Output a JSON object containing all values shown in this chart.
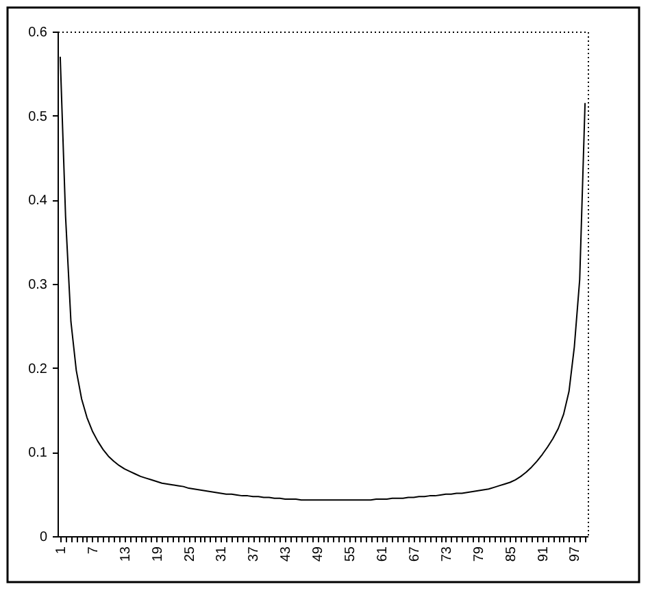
{
  "chart_data": {
    "type": "line",
    "categories": [
      "1",
      null,
      null,
      null,
      null,
      null,
      "7",
      null,
      null,
      null,
      null,
      null,
      "13",
      null,
      null,
      null,
      null,
      null,
      "19",
      null,
      null,
      null,
      null,
      null,
      "25",
      null,
      null,
      null,
      null,
      null,
      "31",
      null,
      null,
      null,
      null,
      null,
      "37",
      null,
      null,
      null,
      null,
      null,
      "43",
      null,
      null,
      null,
      null,
      null,
      "49",
      null,
      null,
      null,
      null,
      null,
      "55",
      null,
      null,
      null,
      null,
      null,
      "61",
      null,
      null,
      null,
      null,
      null,
      "67",
      null,
      null,
      null,
      null,
      null,
      "73",
      null,
      null,
      null,
      null,
      null,
      "79",
      null,
      null,
      null,
      null,
      null,
      "85",
      null,
      null,
      null,
      null,
      null,
      "91",
      null,
      null,
      null,
      null,
      null,
      "97",
      null,
      null
    ],
    "values": [
      0.57,
      0.38,
      0.255,
      0.197,
      0.163,
      0.141,
      0.125,
      0.113,
      0.103,
      0.095,
      0.089,
      0.084,
      0.08,
      0.077,
      0.074,
      0.071,
      0.069,
      0.067,
      0.065,
      0.063,
      0.062,
      0.061,
      0.06,
      0.059,
      0.057,
      0.056,
      0.055,
      0.054,
      0.053,
      0.052,
      0.051,
      0.05,
      0.05,
      0.049,
      0.048,
      0.048,
      0.047,
      0.047,
      0.046,
      0.046,
      0.045,
      0.045,
      0.044,
      0.044,
      0.044,
      0.043,
      0.043,
      0.043,
      0.043,
      0.043,
      0.043,
      0.043,
      0.043,
      0.043,
      0.043,
      0.043,
      0.043,
      0.043,
      0.043,
      0.044,
      0.044,
      0.044,
      0.045,
      0.045,
      0.045,
      0.046,
      0.046,
      0.047,
      0.047,
      0.048,
      0.048,
      0.049,
      0.05,
      0.05,
      0.051,
      0.051,
      0.052,
      0.053,
      0.054,
      0.055,
      0.056,
      0.058,
      0.06,
      0.062,
      0.064,
      0.067,
      0.071,
      0.076,
      0.082,
      0.089,
      0.097,
      0.106,
      0.116,
      0.128,
      0.145,
      0.172,
      0.225,
      0.305,
      0.515
    ],
    "color": "#000000",
    "ylim": [
      0,
      0.6
    ],
    "yticks": [
      0,
      0.1,
      0.2,
      0.3,
      0.4,
      0.5,
      0.6
    ],
    "line_style": "solid"
  }
}
